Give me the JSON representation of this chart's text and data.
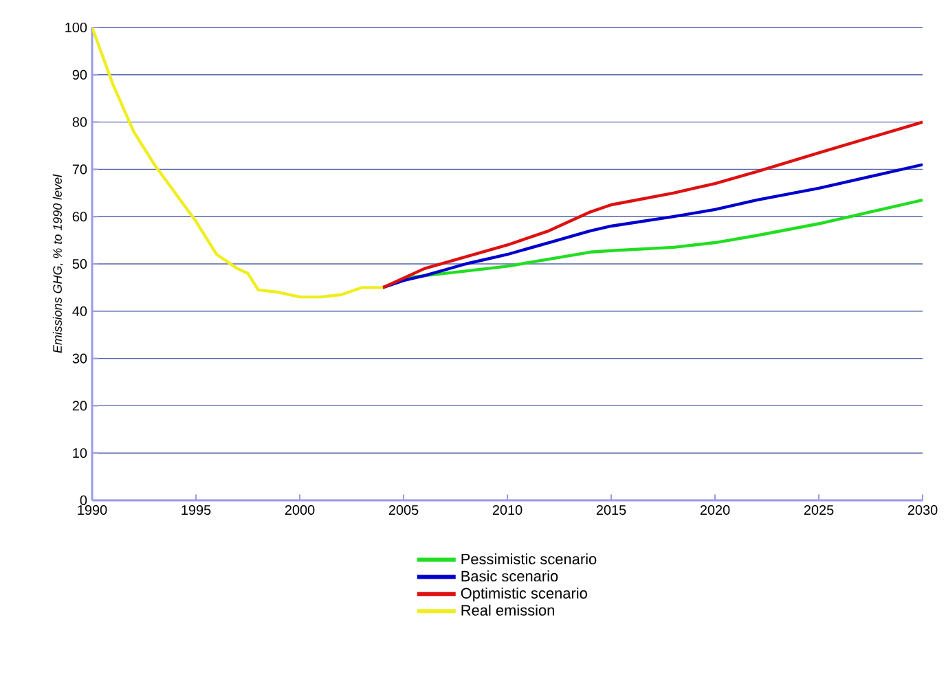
{
  "chart_data": {
    "type": "line",
    "ylabel": "Emissions GHG, % to 1990 level",
    "xlim": [
      1990,
      2030
    ],
    "xticks": [
      1990,
      1995,
      2000,
      2005,
      2010,
      2015,
      2020,
      2025,
      2030
    ],
    "ylim": [
      0,
      100
    ],
    "yticks": [
      0,
      10,
      20,
      30,
      40,
      50,
      60,
      70,
      80,
      90,
      100
    ],
    "grid": "y",
    "legend": "bottom",
    "line_style": "solid",
    "marker": "none",
    "series": [
      {
        "name": "Pessimistic scenario",
        "color": "#22dd22",
        "x": [
          2005,
          2006,
          2008,
          2010,
          2012,
          2014,
          2015,
          2018,
          2020,
          2022,
          2025,
          2030
        ],
        "values": [
          47,
          47.5,
          48.5,
          49.5,
          51,
          52.5,
          52.8,
          53.5,
          54.5,
          56,
          58.5,
          63.5
        ]
      },
      {
        "name": "Basic scenario",
        "color": "#0000cc",
        "x": [
          2004,
          2005,
          2006,
          2008,
          2010,
          2012,
          2014,
          2015,
          2018,
          2020,
          2022,
          2025,
          2030
        ],
        "values": [
          45,
          46.5,
          47.5,
          50,
          52,
          54.5,
          57,
          58,
          60,
          61.5,
          63.5,
          66,
          71
        ]
      },
      {
        "name": "Optimistic scenario",
        "color": "#dd1111",
        "x": [
          2004,
          2005,
          2006,
          2008,
          2010,
          2012,
          2014,
          2015,
          2018,
          2020,
          2022,
          2025,
          2030
        ],
        "values": [
          45,
          47,
          49,
          51.5,
          54,
          57,
          61,
          62.5,
          65,
          67,
          69.5,
          73.5,
          80
        ]
      },
      {
        "name": "Real emission",
        "color": "#eeee22",
        "x": [
          1990,
          1991,
          1992,
          1993,
          1994,
          1995,
          1996,
          1997,
          1997.5,
          1998,
          1999,
          2000,
          2001,
          2002,
          2003,
          2004
        ],
        "values": [
          100,
          88,
          78,
          71,
          65,
          59,
          52,
          49,
          48,
          44.5,
          44,
          43,
          43,
          43.5,
          45,
          45
        ]
      }
    ]
  }
}
